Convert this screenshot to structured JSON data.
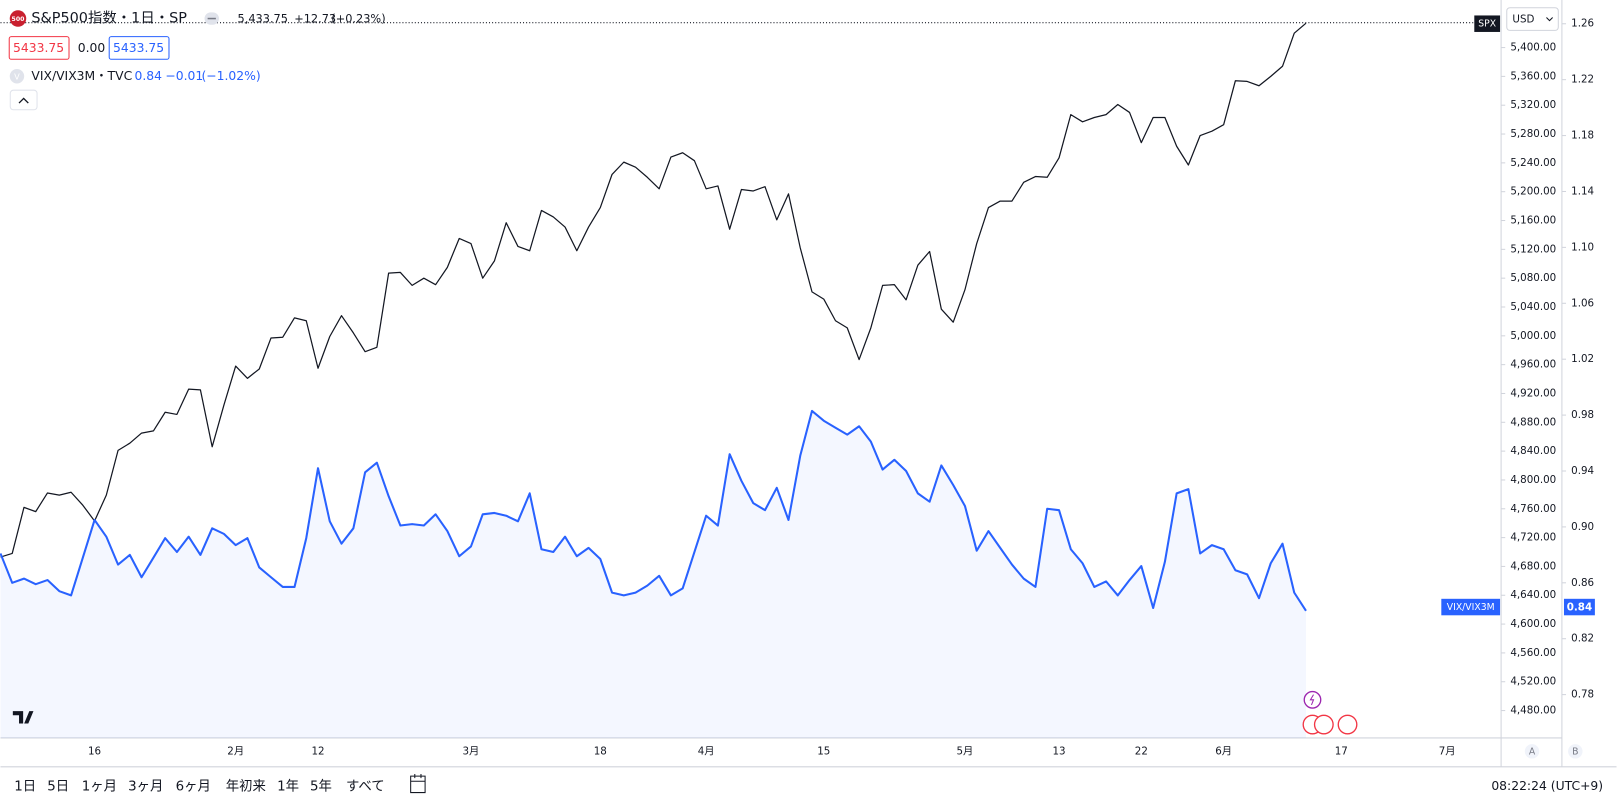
{
  "chart_data": {
    "type": "line",
    "categories": [
      null,
      null,
      null,
      null,
      null,
      null,
      null,
      null,
      "16",
      null,
      null,
      null,
      null,
      null,
      null,
      null,
      null,
      null,
      null,
      null,
      "2月",
      null,
      null,
      null,
      null,
      null,
      null,
      "12",
      null,
      null,
      null,
      null,
      null,
      null,
      null,
      null,
      null,
      null,
      null,
      null,
      "3月",
      null,
      null,
      null,
      null,
      null,
      null,
      null,
      null,
      null,
      null,
      "18",
      null,
      null,
      null,
      null,
      null,
      null,
      null,
      null,
      "4月",
      null,
      null,
      null,
      null,
      null,
      null,
      null,
      null,
      null,
      "15",
      null,
      null,
      null,
      null,
      null,
      null,
      null,
      null,
      null,
      null,
      null,
      "5月",
      null,
      null,
      null,
      null,
      null,
      null,
      null,
      "13",
      null,
      null,
      null,
      null,
      null,
      null,
      "22",
      null,
      null,
      null,
      null,
      null,
      null,
      "6月",
      null,
      null,
      null,
      null,
      null,
      null,
      null,
      null,
      null,
      "17",
      null,
      null,
      null,
      null,
      null,
      null,
      null,
      null,
      "7月",
      null,
      null
    ],
    "series": [
      {
        "name": "SPX",
        "color": "#131722",
        "values": [
          4693,
          4698,
          4762,
          4756,
          4782,
          4779,
          4783,
          4765,
          4743,
          4779,
          4841,
          4851,
          4865,
          4868,
          4894,
          4891,
          4926,
          4925,
          4846,
          4904,
          4958,
          4941,
          4954,
          4997,
          4998,
          5025,
          5021,
          4955,
          4999,
          5028,
          5004,
          4978,
          4984,
          5087,
          5088,
          5070,
          5080,
          5071,
          5095,
          5135,
          5128,
          5080,
          5104,
          5157,
          5124,
          5118,
          5174,
          5165,
          5151,
          5118,
          5151,
          5178,
          5224,
          5241,
          5234,
          5220,
          5204,
          5248,
          5254,
          5243,
          5204,
          5208,
          5148,
          5203,
          5201,
          5207,
          5161,
          5197,
          5122,
          5061,
          5051,
          5021,
          5011,
          4967,
          5011,
          5070,
          5071,
          5050,
          5098,
          5117,
          5037,
          5019,
          5064,
          5128,
          5178,
          5187,
          5187,
          5213,
          5221,
          5220,
          5247,
          5307,
          5297,
          5303,
          5307,
          5321,
          5310,
          5268,
          5303,
          5303,
          5263,
          5237,
          5278,
          5284,
          5293,
          5354,
          5353,
          5347,
          5360,
          5374,
          5420,
          5433.75,
          null,
          null,
          null,
          null,
          null,
          null,
          null,
          null,
          null,
          null,
          null,
          null,
          null,
          null
        ]
      },
      {
        "name": "VIX/VIX3M",
        "color": "#2962ff",
        "axis": "y2",
        "area": true,
        "values": [
          0.881,
          0.86,
          0.863,
          0.859,
          0.862,
          0.854,
          0.851,
          0.878,
          0.905,
          0.893,
          0.873,
          0.88,
          0.864,
          0.878,
          0.892,
          0.882,
          0.893,
          0.88,
          0.899,
          0.895,
          0.887,
          0.892,
          0.871,
          0.864,
          0.857,
          0.857,
          0.892,
          0.942,
          0.904,
          0.888,
          0.899,
          0.939,
          0.946,
          0.922,
          0.901,
          0.902,
          0.901,
          0.909,
          0.897,
          0.879,
          0.886,
          0.909,
          0.91,
          0.908,
          0.904,
          0.924,
          0.884,
          0.882,
          0.893,
          0.879,
          0.885,
          0.877,
          0.853,
          0.851,
          0.853,
          0.858,
          0.865,
          0.851,
          0.856,
          0.882,
          0.908,
          0.901,
          0.952,
          0.933,
          0.917,
          0.912,
          0.928,
          0.905,
          0.951,
          0.983,
          0.976,
          0.971,
          0.966,
          0.972,
          0.961,
          0.941,
          0.948,
          0.94,
          0.924,
          0.918,
          0.944,
          0.93,
          0.915,
          0.883,
          0.897,
          0.885,
          0.873,
          0.863,
          0.857,
          0.913,
          0.912,
          0.884,
          0.874,
          0.857,
          0.861,
          0.851,
          0.862,
          0.872,
          0.842,
          0.875,
          0.924,
          0.927,
          0.881,
          0.887,
          0.884,
          0.869,
          0.866,
          0.849,
          0.874,
          0.888,
          0.853,
          0.84,
          null,
          null,
          null,
          null,
          null,
          null,
          null,
          null,
          null,
          null,
          null,
          null,
          null,
          null
        ]
      }
    ],
    "ylim": [
      4442,
      5466
    ],
    "yticks": [
      {
        "value": 4480,
        "label": "4,480.00"
      },
      {
        "value": 4520,
        "label": "4,520.00"
      },
      {
        "value": 4560,
        "label": "4,560.00"
      },
      {
        "value": 4600,
        "label": "4,600.00"
      },
      {
        "value": 4640,
        "label": "4,640.00"
      },
      {
        "value": 4680,
        "label": "4,680.00"
      },
      {
        "value": 4720,
        "label": "4,720.00"
      },
      {
        "value": 4760,
        "label": "4,760.00"
      },
      {
        "value": 4800,
        "label": "4,800.00"
      },
      {
        "value": 4840,
        "label": "4,840.00"
      },
      {
        "value": 4880,
        "label": "4,880.00"
      },
      {
        "value": 4920,
        "label": "4,920.00"
      },
      {
        "value": 4960,
        "label": "4,960.00"
      },
      {
        "value": 5000,
        "label": "5,000.00"
      },
      {
        "value": 5040,
        "label": "5,040.00"
      },
      {
        "value": 5080,
        "label": "5,080.00"
      },
      {
        "value": 5120,
        "label": "5,120.00"
      },
      {
        "value": 5160,
        "label": "5,160.00"
      },
      {
        "value": 5200,
        "label": "5,200.00"
      },
      {
        "value": 5240,
        "label": "5,240.00"
      },
      {
        "value": 5280,
        "label": "5,280.00"
      },
      {
        "value": 5320,
        "label": "5,320.00"
      },
      {
        "value": 5360,
        "label": "5,360.00"
      },
      {
        "value": 5400,
        "label": "5,400.00"
      }
    ],
    "y2lim": [
      0.749,
      1.277
    ],
    "y2ticks": [
      0.78,
      0.82,
      0.86,
      {
        "value": 0.9,
        "label": "0.90"
      },
      0.94,
      0.98,
      1.02,
      1.06,
      {
        "value": 1.1,
        "label": "1.10"
      },
      1.14,
      1.18,
      1.22,
      1.26
    ]
  },
  "ui": {
    "logo": "500",
    "symbol": "S&P500指数・1日・SP",
    "last": "5,433.75",
    "change": "+12.73",
    "change_pct": "(+0.23%)",
    "bid": "5433.75",
    "spread": "0.00",
    "ask": "5433.75",
    "study_icon": "V",
    "study": "VIX/VIX3M・TVC",
    "study_last": "0.84",
    "study_change": "−0.01",
    "study_change_pct": "(−1.02%)",
    "currency": "USD",
    "vix_tag_value": "0.84",
    "scale_a": "A",
    "scale_b": "B",
    "periods": [
      "1日",
      "5日",
      "1ヶ月",
      "3ヶ月",
      "6ヶ月",
      "年初来",
      "1年",
      "5年",
      "すべて"
    ],
    "clock": "08:22:24 (UTC+9)"
  }
}
